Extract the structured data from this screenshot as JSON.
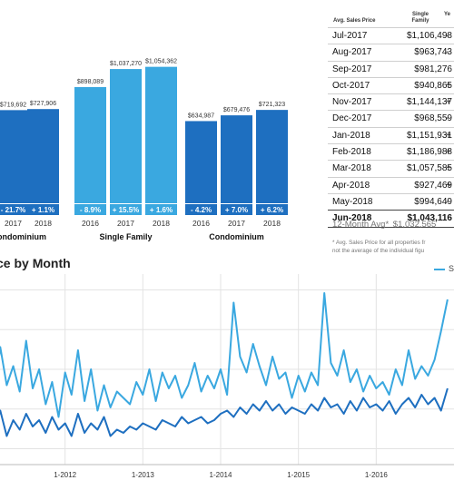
{
  "bar_panel": {
    "panels": [
      {
        "title": "ondominium",
        "years": [
          "2017",
          "2018"
        ],
        "values": [
          719692,
          727906
        ],
        "value_labels": [
          "$719,692",
          "$727,906"
        ],
        "changes": [
          "- 21.7%",
          "+ 1.1%"
        ],
        "color": "#1e6fc0"
      },
      {
        "title": "Single Family",
        "years": [
          "2016",
          "2017",
          "2018"
        ],
        "values": [
          898089,
          1037270,
          1054362
        ],
        "value_labels": [
          "$898,089",
          "$1,037,270",
          "$1,054,362"
        ],
        "changes": [
          "- 8.9%",
          "+ 15.5%",
          "+ 1.6%"
        ],
        "color": "#3aa8e0"
      },
      {
        "title": "Condominium",
        "years": [
          "2016",
          "2017",
          "2018"
        ],
        "values": [
          634987,
          679476,
          721323
        ],
        "value_labels": [
          "$634,987",
          "$679,476",
          "$721,323"
        ],
        "changes": [
          "- 4.2%",
          "+ 7.0%",
          "+ 6.2%"
        ],
        "color": "#1e6fc0"
      }
    ]
  },
  "table": {
    "header": {
      "month": "Avg. Sales Price",
      "price": "Single Family",
      "change": "Ye"
    },
    "rows": [
      {
        "month": "Jul-2017",
        "price": "$1,106,498",
        "change": "-"
      },
      {
        "month": "Aug-2017",
        "price": "$963,743",
        "change": "-"
      },
      {
        "month": "Sep-2017",
        "price": "$981,276",
        "change": ""
      },
      {
        "month": "Oct-2017",
        "price": "$940,865",
        "change": "+"
      },
      {
        "month": "Nov-2017",
        "price": "$1,144,137",
        "change": "+"
      },
      {
        "month": "Dec-2017",
        "price": "$968,559",
        "change": "-"
      },
      {
        "month": "Jan-2018",
        "price": "$1,151,931",
        "change": "+"
      },
      {
        "month": "Feb-2018",
        "price": "$1,186,988",
        "change": "+"
      },
      {
        "month": "Mar-2018",
        "price": "$1,057,585",
        "change": "+"
      },
      {
        "month": "Apr-2018",
        "price": "$927,469",
        "change": "+"
      },
      {
        "month": "May-2018",
        "price": "$994,649",
        "change": "-"
      },
      {
        "month": "Jun-2018",
        "price": "$1,043,116",
        "change": ""
      }
    ],
    "avg_label": "12-Month Avg*",
    "avg_value": "$1,032,565",
    "footnote_1": "* Avg. Sales Price for all properties fr",
    "footnote_2": "not the average of the individual figu"
  },
  "line_chart": {
    "title": "ce by Month",
    "legend_label": "S",
    "legend_color": "#3aa8e0"
  },
  "chart_data": [
    {
      "type": "bar",
      "title": "ondominium",
      "categories": [
        "2017",
        "2018"
      ],
      "values": [
        719692,
        727906
      ],
      "changes": [
        "- 21.7%",
        "+ 1.1%"
      ]
    },
    {
      "type": "bar",
      "title": "Single Family",
      "categories": [
        "2016",
        "2017",
        "2018"
      ],
      "values": [
        898089,
        1037270,
        1054362
      ],
      "changes": [
        "- 8.9%",
        "+ 15.5%",
        "+ 1.6%"
      ]
    },
    {
      "type": "bar",
      "title": "Condominium",
      "categories": [
        "2016",
        "2017",
        "2018"
      ],
      "values": [
        634987,
        679476,
        721323
      ],
      "changes": [
        "- 4.2%",
        "+ 7.0%",
        "+ 6.2%"
      ]
    },
    {
      "type": "line",
      "title": "ce by Month",
      "x_ticks": [
        "1-2012",
        "1-2013",
        "1-2014",
        "1-2015",
        "1-2016"
      ],
      "x": [
        2011.0,
        2011.0833,
        2011.1667,
        2011.25,
        2011.3333,
        2011.4167,
        2011.5,
        2011.5833,
        2011.6667,
        2011.75,
        2011.8333,
        2011.9167,
        2012.0,
        2012.0833,
        2012.1667,
        2012.25,
        2012.3333,
        2012.4167,
        2012.5,
        2012.5833,
        2012.6667,
        2012.75,
        2012.8333,
        2012.9167,
        2013.0,
        2013.0833,
        2013.1667,
        2013.25,
        2013.3333,
        2013.4167,
        2013.5,
        2013.5833,
        2013.6667,
        2013.75,
        2013.8333,
        2013.9167,
        2014.0,
        2014.0833,
        2014.1667,
        2014.25,
        2014.3333,
        2014.4167,
        2014.5,
        2014.5833,
        2014.6667,
        2014.75,
        2014.8333,
        2014.9167,
        2015.0,
        2015.0833,
        2015.1667,
        2015.25,
        2015.3333,
        2015.4167,
        2015.5,
        2015.5833,
        2015.6667,
        2015.75,
        2015.8333,
        2015.9167,
        2016.0,
        2016.0833,
        2016.1667,
        2016.25,
        2016.3333,
        2016.4167,
        2016.5,
        2016.5833,
        2016.6667,
        2016.75,
        2016.8333,
        2016.9167
      ],
      "series": [
        {
          "name": "S",
          "color": "#3aa8e0",
          "values": [
            0.96,
            0.82,
            1.14,
            0.9,
            1.02,
            0.86,
            1.18,
            0.88,
            1.0,
            0.78,
            0.92,
            0.7,
            0.98,
            0.84,
            1.12,
            0.8,
            1.0,
            0.74,
            0.9,
            0.76,
            0.86,
            0.82,
            0.78,
            0.92,
            0.84,
            1.0,
            0.8,
            0.98,
            0.88,
            0.96,
            0.82,
            0.9,
            1.04,
            0.86,
            0.96,
            0.88,
            1.0,
            0.84,
            1.42,
            1.08,
            0.98,
            1.16,
            1.02,
            0.9,
            1.08,
            0.94,
            0.98,
            0.82,
            0.96,
            0.86,
            0.98,
            0.9,
            1.48,
            1.04,
            0.96,
            1.12,
            0.92,
            1.0,
            0.86,
            0.96,
            0.88,
            0.92,
            0.84,
            1.0,
            0.9,
            1.12,
            0.94,
            1.02,
            0.96,
            1.06,
            1.24,
            1.44
          ]
        },
        {
          "name": "",
          "color": "#1e6fc0",
          "values": [
            0.7,
            0.6,
            0.74,
            0.58,
            0.68,
            0.62,
            0.72,
            0.64,
            0.68,
            0.6,
            0.7,
            0.62,
            0.66,
            0.58,
            0.72,
            0.6,
            0.66,
            0.62,
            0.7,
            0.58,
            0.62,
            0.6,
            0.64,
            0.62,
            0.66,
            0.64,
            0.62,
            0.68,
            0.66,
            0.64,
            0.7,
            0.66,
            0.68,
            0.7,
            0.66,
            0.68,
            0.72,
            0.74,
            0.7,
            0.76,
            0.72,
            0.78,
            0.74,
            0.8,
            0.74,
            0.78,
            0.72,
            0.76,
            0.74,
            0.72,
            0.78,
            0.74,
            0.82,
            0.76,
            0.78,
            0.72,
            0.8,
            0.74,
            0.82,
            0.76,
            0.78,
            0.74,
            0.8,
            0.72,
            0.78,
            0.82,
            0.76,
            0.84,
            0.78,
            0.82,
            0.74,
            0.88
          ]
        }
      ]
    }
  ]
}
